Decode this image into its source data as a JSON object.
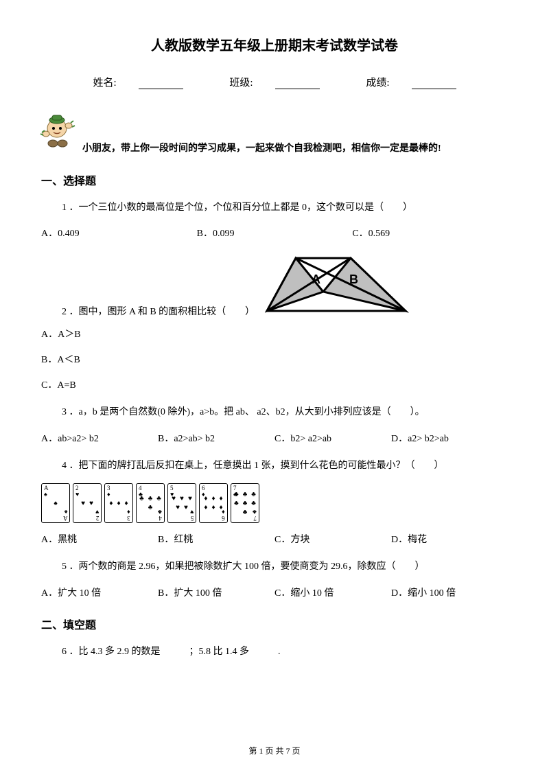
{
  "title": "人教版数学五年级上册期末考试数学试卷",
  "info": {
    "name_label": "姓名:",
    "class_label": "班级:",
    "score_label": "成绩:"
  },
  "encourage": "小朋友，带上你一段时间的学习成果，一起来做个自我检测吧，相信你一定是最棒的!",
  "section1": "一、选择题",
  "section2": "二、填空题",
  "q1": {
    "text": "1 ．一个三位小数的最高位是个位，个位和百分位上都是 0，这个数可以是（　　）",
    "a": "A．0.409",
    "b": "B．0.099",
    "c": "C．0.569"
  },
  "q2": {
    "text": "2 ．图中，图形 A 和 B 的面积相比较（　　）",
    "a": "A．A＞B",
    "b": "B．A＜B",
    "c": "C．A=B",
    "labelA": "A",
    "labelB": "B"
  },
  "q3": {
    "text": "3 ．a，b 是两个自然数(0 除外)，a>b。把 ab、 a2、b2，从大到小排列应该是（　　）。",
    "a": "A．ab>a2> b2",
    "b": "B．a2>ab> b2",
    "c": "C．b2> a2>ab",
    "d": "D．a2> b2>ab"
  },
  "q4": {
    "text": "4 ．把下面的牌打乱后反扣在桌上，任意摸出 1 张，摸到什么花色的可能性最小？（　　）",
    "a": "A．黑桃",
    "b": "B．红桃",
    "c": "C．方块",
    "d": "D．梅花",
    "cards": [
      {
        "rank": "A",
        "suit": "♠",
        "pips": [
          "♠"
        ]
      },
      {
        "rank": "2",
        "suit": "♥",
        "pips": [
          "♥",
          "♥"
        ]
      },
      {
        "rank": "3",
        "suit": "♦",
        "pips": [
          "♦",
          "♦",
          "♦"
        ]
      },
      {
        "rank": "4",
        "suit": "♣",
        "pips": [
          "♣",
          "♣",
          "♣",
          "♣"
        ]
      },
      {
        "rank": "5",
        "suit": "♥",
        "pips": [
          "♥",
          "♥",
          "♥",
          "♥",
          "♥"
        ]
      },
      {
        "rank": "6",
        "suit": "♦",
        "pips": [
          "♦",
          "♦",
          "♦",
          "♦",
          "♦",
          "♦"
        ]
      },
      {
        "rank": "7",
        "suit": "♣",
        "pips": [
          "♣",
          "♣",
          "♣",
          "♣",
          "♣",
          "♣",
          "♣"
        ]
      }
    ]
  },
  "q5": {
    "text": "5 ．两个数的商是 2.96，如果把被除数扩大 100 倍，要使商变为 29.6，除数应（　　）",
    "a": "A．扩大 10 倍",
    "b": "B．扩大 100 倍",
    "c": "C．缩小 10 倍",
    "d": "D．缩小 100 倍"
  },
  "q6": {
    "text": "6 ．比 4.3 多 2.9 的数是　　　；5.8 比 1.4 多　　　."
  },
  "footer": "第 1 页 共 7 页",
  "colors": {
    "text": "#000000",
    "bg": "#ffffff",
    "shade": "#bfbfbf"
  }
}
